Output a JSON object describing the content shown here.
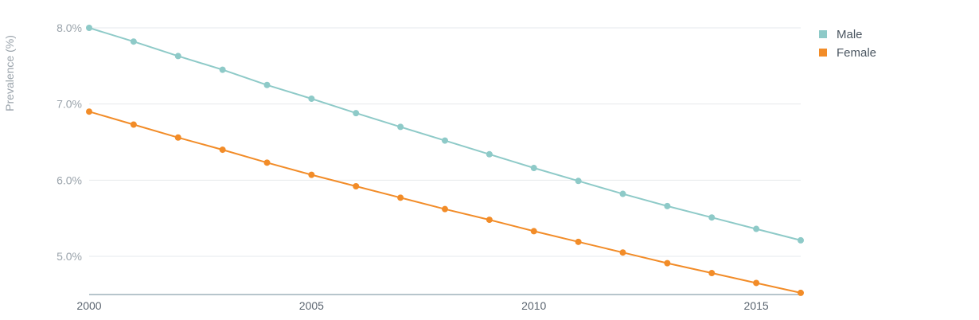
{
  "chart_data": {
    "type": "line",
    "title": "",
    "xlabel": "",
    "ylabel": "Prevalence (%)",
    "x": [
      2000,
      2001,
      2002,
      2003,
      2004,
      2005,
      2006,
      2007,
      2008,
      2009,
      2010,
      2011,
      2012,
      2013,
      2014,
      2015,
      2016
    ],
    "xticks": [
      2000,
      2005,
      2010,
      2015
    ],
    "xtick_labels": [
      "2000",
      "2005",
      "2010",
      "2015"
    ],
    "ylim": [
      4.5,
      8.2
    ],
    "yticks": [
      5.0,
      6.0,
      7.0,
      8.0
    ],
    "ytick_labels": [
      "5.0%",
      "6.0%",
      "7.0%",
      "8.0%"
    ],
    "grid": true,
    "legend_position": "top-right",
    "series": [
      {
        "name": "Male",
        "color": "#8ecac8",
        "values": [
          8.0,
          7.82,
          7.63,
          7.45,
          7.25,
          7.07,
          6.88,
          6.7,
          6.52,
          6.34,
          6.16,
          5.99,
          5.82,
          5.66,
          5.51,
          5.36,
          5.21
        ]
      },
      {
        "name": "Female",
        "color": "#f28c28",
        "values": [
          6.9,
          6.73,
          6.56,
          6.4,
          6.23,
          6.07,
          5.92,
          5.77,
          5.62,
          5.48,
          5.33,
          5.19,
          5.05,
          4.91,
          4.78,
          4.65,
          4.52
        ]
      }
    ]
  }
}
